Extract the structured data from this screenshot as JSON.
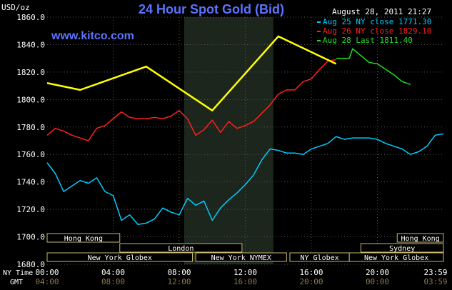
{
  "header": {
    "title": "24 Hour Spot Gold (Bid)",
    "unit_label": "USD/oz",
    "timestamp": "August 28, 2011 21:27",
    "watermark": "www.kitco.com"
  },
  "legend": [
    {
      "label": "Aug 25 NY close 1771.30",
      "color": "#00ccff"
    },
    {
      "label": "Aug 26 NY close 1829.10",
      "color": "#ff2020"
    },
    {
      "label": "Aug 28 Last 1811.40",
      "color": "#22dd22"
    }
  ],
  "sessions": [
    {
      "label": "Hong Kong",
      "start": 0.0,
      "end": 4.4,
      "row": 0
    },
    {
      "label": "London",
      "start": 4.4,
      "end": 11.8,
      "row": 1
    },
    {
      "label": "New York Globex",
      "start": 0.0,
      "end": 8.8,
      "row": 2
    },
    {
      "label": "New York NYMEX",
      "start": 9.0,
      "end": 14.5,
      "row": 2
    },
    {
      "label": "NY Globex",
      "start": 14.7,
      "end": 18.3,
      "row": 2
    },
    {
      "label": "Hong Kong",
      "start": 21.2,
      "end": 24.0,
      "row": 0
    },
    {
      "label": "Sydney",
      "start": 19.0,
      "end": 24.0,
      "row": 1
    },
    {
      "label": "New York Globex",
      "start": 18.3,
      "end": 24.0,
      "row": 2
    }
  ],
  "axis": {
    "ny_time_label": "NY Time",
    "gmt_label": "GMT",
    "ny_ticks": [
      "00:00",
      "04:00",
      "08:00",
      "12:00",
      "16:00",
      "20:00",
      "23:59"
    ],
    "gmt_ticks": [
      "04:00",
      "08:00",
      "12:00",
      "16:00",
      "20:00",
      "00:00",
      "03:59"
    ],
    "y_ticks": [
      "1860.0",
      "1840.0",
      "1820.0",
      "1800.0",
      "1780.0",
      "1760.0",
      "1740.0",
      "1720.0",
      "1700.0",
      "1680.0"
    ]
  },
  "chart_data": {
    "type": "line",
    "title": "24 Hour Spot Gold (Bid)",
    "ylabel": "USD/oz",
    "x_unit": "NY time (hours)",
    "xlim": [
      0,
      24
    ],
    "ylim": [
      1680,
      1860
    ],
    "shaded_region": [
      8.3,
      13.7
    ],
    "series": [
      {
        "name": "Aug 25 NY close 1771.30",
        "color": "#00ccff",
        "x": [
          0,
          0.5,
          1,
          1.5,
          2,
          2.5,
          3,
          3.5,
          4,
          4.5,
          5,
          5.5,
          6,
          6.5,
          7,
          7.5,
          8,
          8.5,
          9,
          9.5,
          10,
          10.5,
          11,
          11.5,
          12,
          12.5,
          13,
          13.5,
          14,
          14.5,
          15,
          15.5,
          16,
          16.5,
          17,
          17.5,
          18,
          18.5,
          19,
          19.5,
          20,
          20.5,
          21,
          21.5,
          22,
          22.5,
          23,
          23.5,
          24
        ],
        "y": [
          1754,
          1746,
          1733,
          1737,
          1741,
          1739,
          1743,
          1733,
          1730,
          1712,
          1716,
          1709,
          1710,
          1713,
          1721,
          1718,
          1716,
          1728,
          1723,
          1726,
          1712,
          1721,
          1727,
          1732,
          1738,
          1745,
          1756,
          1764,
          1763,
          1761,
          1761,
          1760,
          1764,
          1766,
          1768,
          1773,
          1771,
          1772,
          1772,
          1772,
          1771,
          1768,
          1766,
          1764,
          1760,
          1762,
          1766,
          1774,
          1775
        ]
      },
      {
        "name": "Aug 26 NY close 1829.10",
        "color": "#ff2020",
        "x": [
          0,
          0.5,
          1,
          1.5,
          2,
          2.5,
          3,
          3.5,
          4,
          4.5,
          5,
          5.5,
          6,
          6.5,
          7,
          7.5,
          8,
          8.5,
          9,
          9.5,
          10,
          10.5,
          11,
          11.5,
          12,
          12.5,
          13,
          13.5,
          14,
          14.5,
          15,
          15.5,
          16,
          16.5,
          17,
          17.5
        ],
        "y": [
          1774,
          1779,
          1777,
          1774,
          1772,
          1770,
          1779,
          1781,
          1786,
          1791,
          1787,
          1786,
          1786,
          1787,
          1786,
          1788,
          1792,
          1786,
          1774,
          1778,
          1785,
          1776,
          1784,
          1779,
          1781,
          1784,
          1790,
          1796,
          1804,
          1807,
          1807,
          1813,
          1815,
          1822,
          1828,
          1829
        ]
      },
      {
        "name": "Aug 28 Last 1811.40",
        "color": "#22dd22",
        "x": [
          17.5,
          18,
          18.3,
          18.5,
          19,
          19.5,
          20,
          20.5,
          21,
          21.5,
          22
        ],
        "y": [
          1830,
          1830,
          1830,
          1837,
          1832,
          1827,
          1826,
          1822,
          1818,
          1813,
          1811
        ]
      },
      {
        "name": "",
        "color": "#ffff00",
        "x": [
          0,
          2,
          6,
          10,
          14,
          17.5
        ],
        "y": [
          1812,
          1807,
          1824,
          1792,
          1846,
          1826
        ]
      }
    ]
  }
}
